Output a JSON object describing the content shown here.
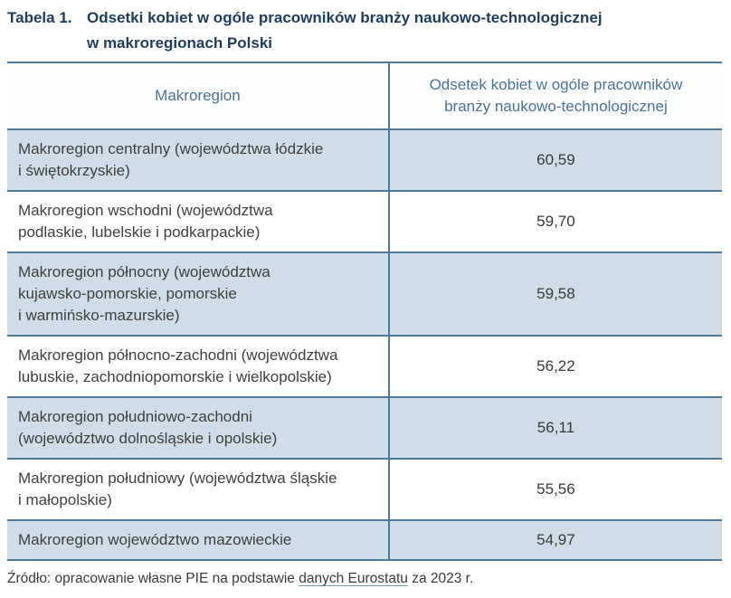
{
  "title": {
    "label": "Tabela 1.",
    "text": "Odsetki kobiet w ogóle pracowników branży naukowo-technologicznej\nw makroregionach Polski"
  },
  "table": {
    "columns": {
      "region": "Makroregion",
      "value": "Odsetek kobiet w ogóle pracowników\nbranży naukowo-technologicznej"
    },
    "rows": [
      {
        "region": "Makroregion centralny (województwa łódzkie\ni świętokrzyskie)",
        "value": "60,59"
      },
      {
        "region": "Makroregion wschodni (województwa\npodlaskie, lubelskie i podkarpackie)",
        "value": "59,70"
      },
      {
        "region": "Makroregion północny (województwa\nkujawsko-pomorskie, pomorskie\ni warmińsko-mazurskie)",
        "value": "59,58"
      },
      {
        "region": "Makroregion północno-zachodni (województwa\nlubuskie, zachodniopomorskie i wielkopolskie)",
        "value": "56,22"
      },
      {
        "region": "Makroregion południowo-zachodni\n(województwo dolnośląskie i opolskie)",
        "value": "56,11"
      },
      {
        "region": "Makroregion południowy (województwa śląskie\ni małopolskie)",
        "value": "55,56"
      },
      {
        "region": "Makroregion województwo mazowieckie",
        "value": "54,97"
      }
    ]
  },
  "source": {
    "prefix": "Źródło: opracowanie własne PIE na podstawie ",
    "link": "danych Eurostatu",
    "suffix": " za 2023 r."
  },
  "colors": {
    "title_navy": "#1d3d5e",
    "header_text_blue": "#4a7396",
    "border_steel_blue": "#4e7a9c",
    "row_alt_light_blue": "#cedde7",
    "body_text": "#404040"
  },
  "chart_data": {
    "type": "table",
    "title": "Tabela 1. Odsetki kobiet w ogóle pracowników branży naukowo-technologicznej w makroregionach Polski",
    "categories": [
      "Makroregion centralny (województwa łódzkie i świętokrzyskie)",
      "Makroregion wschodni (województwa podlaskie, lubelskie i podkarpackie)",
      "Makroregion północny (województwa kujawsko-pomorskie, pomorskie i warmińsko-mazurskie)",
      "Makroregion północno-zachodni (województwa lubuskie, zachodniopomorskie i wielkopolskie)",
      "Makroregion południowo-zachodni (województwo dolnośląskie i opolskie)",
      "Makroregion południowy (województwa śląskie i małopolskie)",
      "Makroregion województwo mazowieckie"
    ],
    "values": [
      60.59,
      59.7,
      59.58,
      56.22,
      56.11,
      55.56,
      54.97
    ],
    "value_label": "Odsetek kobiet w ogóle pracowników branży naukowo-technologicznej",
    "source": "Źródło: opracowanie własne PIE na podstawie danych Eurostatu za 2023 r."
  }
}
